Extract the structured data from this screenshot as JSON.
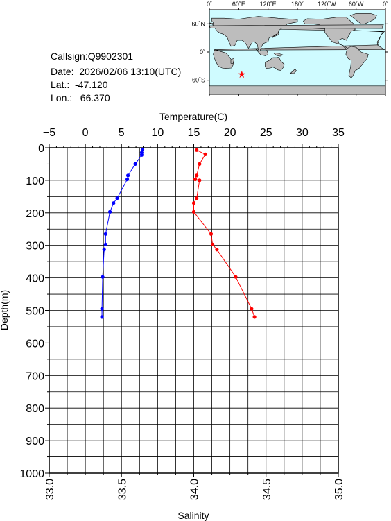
{
  "info": {
    "callsign": "Callsign:Q9902301",
    "date": "Date:  2026/02/06 13:10(UTC)",
    "lat": "Lat.:  -47.120",
    "lon": "Lon.:   66.370"
  },
  "map": {
    "lon_labels": [
      "0˚",
      "60˚E",
      "120˚E",
      "180˚",
      "120˚W",
      "60˚W",
      "0˚"
    ],
    "lat_labels": [
      "60˚N",
      "0˚",
      "60˚S"
    ],
    "ocean_color": "#cffbff",
    "land_color": "#bdbdbd",
    "marker_color": "#ff0000",
    "marker": {
      "lon": 66.37,
      "lat": -47.12
    }
  },
  "chart_data": {
    "type": "line",
    "top_axis_title": "Temperature(C)",
    "bottom_axis_title": "Salinity",
    "ylabel": "Depth(m)",
    "temperature_ticks": [
      "−5",
      "0",
      "5",
      "10",
      "15",
      "20",
      "25",
      "30",
      "35"
    ],
    "salinity_ticks": [
      "33.0",
      "33.5",
      "34.0",
      "34.5",
      "35.0"
    ],
    "depth_ticks": [
      "0",
      "100",
      "200",
      "300",
      "400",
      "500",
      "600",
      "700",
      "800",
      "900",
      "1000"
    ],
    "temperature_range": [
      -5,
      35
    ],
    "salinity_range": [
      33.0,
      35.0
    ],
    "depth_range": [
      0,
      1000
    ],
    "grid": true,
    "series": [
      {
        "axis": "temperature",
        "color": "#0000ff",
        "points": [
          [
            7.9,
            5
          ],
          [
            7.8,
            15
          ],
          [
            7.8,
            22
          ],
          [
            6.9,
            50
          ],
          [
            5.9,
            85
          ],
          [
            5.8,
            97
          ],
          [
            4.4,
            155
          ],
          [
            3.9,
            170
          ],
          [
            3.4,
            197
          ],
          [
            2.8,
            265
          ],
          [
            2.8,
            297
          ],
          [
            2.6,
            313
          ],
          [
            2.4,
            397
          ],
          [
            2.3,
            495
          ],
          [
            2.3,
            520
          ]
        ]
      },
      {
        "axis": "salinity",
        "color": "#ff0000",
        "points": [
          [
            34.02,
            7
          ],
          [
            34.08,
            20
          ],
          [
            34.04,
            50
          ],
          [
            34.02,
            85
          ],
          [
            34.01,
            97
          ],
          [
            34.04,
            100
          ],
          [
            34.02,
            155
          ],
          [
            34.0,
            170
          ],
          [
            34.0,
            197
          ],
          [
            34.12,
            265
          ],
          [
            34.13,
            297
          ],
          [
            34.16,
            313
          ],
          [
            34.29,
            397
          ],
          [
            34.4,
            495
          ],
          [
            34.42,
            520
          ]
        ]
      }
    ]
  }
}
